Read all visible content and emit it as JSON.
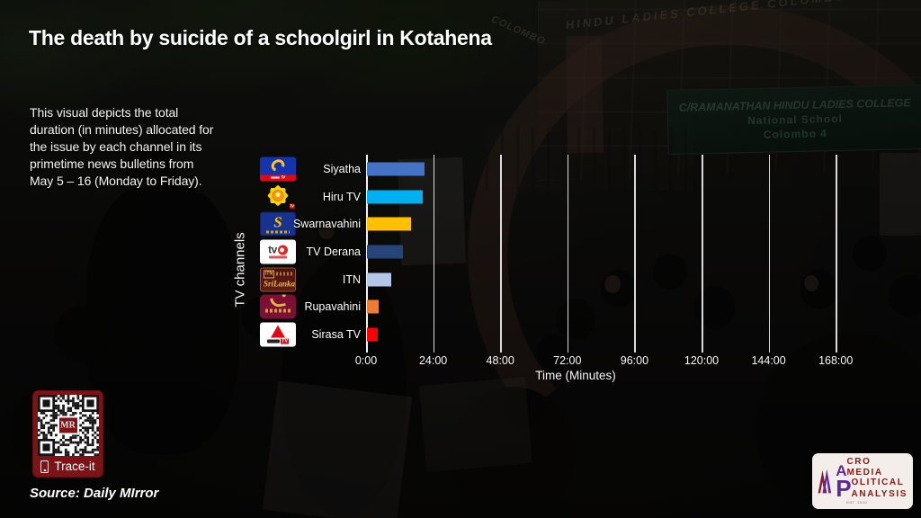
{
  "header": {
    "title": "The death by suicide of a schoolgirl in Kotahena"
  },
  "description": "This visual depicts the total duration (in minutes) allocated for the issue by each channel in its primetime news bulletins from May 5 – 16 (Monday to Friday).",
  "chart_data": {
    "type": "bar",
    "orientation": "horizontal",
    "title": "The death by suicide of a schoolgirl in Kotahena",
    "ylabel": "TV channels",
    "xlabel": "Time (Minutes)",
    "categories": [
      "Siyatha",
      "Hiru TV",
      "Swarnavahini",
      "TV Derana",
      "ITN",
      "Rupavahini",
      "Sirasa TV"
    ],
    "values_minutes": [
      20.6,
      19.9,
      15.7,
      13.0,
      8.8,
      4.3,
      4.0
    ],
    "bar_colors": [
      "#4472c4",
      "#00b0f0",
      "#ffc000",
      "#264478",
      "#b4c7e7",
      "#ed7d31",
      "#ff0000"
    ],
    "x_ticks": [
      "0:00",
      "24:00",
      "48:00",
      "72:00",
      "96:00",
      "120:00",
      "144:00",
      "168:00"
    ],
    "x_tick_minutes": [
      0,
      24,
      48,
      72,
      96,
      120,
      144,
      168
    ],
    "xlim_minutes": [
      0,
      168
    ],
    "grid": true,
    "legend": false
  },
  "logos": {
    "siyatha_band_text": "tv",
    "hiru_text": "tv",
    "swarnavahini_letter": "S",
    "derana_text": "tv",
    "itn_abbr": "ITN",
    "itn_script": "SriLanka",
    "sirasa_text": "TV"
  },
  "qr": {
    "label": "Trace-it",
    "center_text": "MR"
  },
  "source": "Source: Daily MIrror",
  "background": {
    "arch_top_text": "HINDU LADIES COLLEGE COLOMBO",
    "arch_left_text": "COLOMBO",
    "sign_line1": "C/RAMANATHAN HINDU LADIES COLLEGE",
    "sign_line2": "National School",
    "sign_line3": "Colombo 4"
  },
  "brand": {
    "line1_initial": "A",
    "line1_rest": "CRO MEDIA",
    "line2_initial": "P",
    "line2_rest": "OLITICAL",
    "line3_rest": "ANALYSIS",
    "est": "EST. 2010",
    "color_red": "#8b1717",
    "color_purple": "#5b2a9b"
  },
  "accent": {
    "qr_panel": "#7c1417"
  }
}
